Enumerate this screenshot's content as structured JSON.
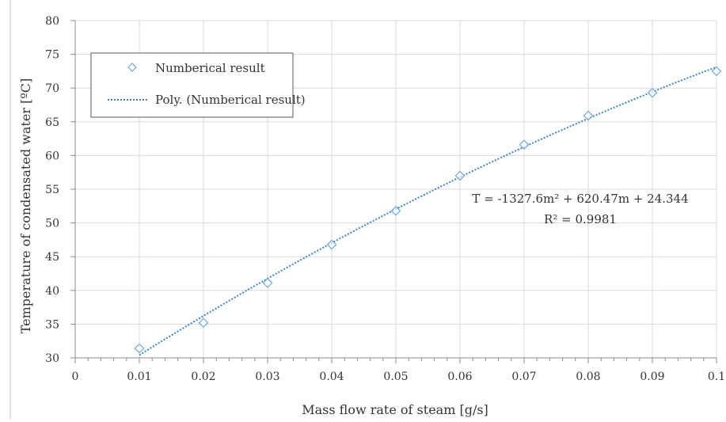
{
  "chart_data": {
    "type": "scatter",
    "title": "",
    "xlabel": "Mass flow rate of steam [g/s]",
    "ylabel": "Temperature of condensated water [ºC]",
    "xlim": [
      0,
      0.1
    ],
    "ylim": [
      30,
      80
    ],
    "x_ticks": [
      "0",
      "0.01",
      "0.02",
      "0.03",
      "0.04",
      "0.05",
      "0.06",
      "0.07",
      "0.08",
      "0.09",
      "0.1"
    ],
    "y_ticks": [
      "30",
      "35",
      "40",
      "45",
      "50",
      "55",
      "60",
      "65",
      "70",
      "75",
      "80"
    ],
    "grid": true,
    "legend_position": "top-left",
    "series": [
      {
        "name": "Numberical result",
        "marker": "diamond",
        "color": "#6fa8dc",
        "x": [
          0.01,
          0.02,
          0.03,
          0.04,
          0.05,
          0.06,
          0.07,
          0.08,
          0.09,
          0.1
        ],
        "y": [
          31.4,
          35.2,
          41.1,
          46.8,
          51.8,
          57.0,
          61.6,
          65.9,
          69.3,
          72.5
        ]
      }
    ],
    "trendline": {
      "name": "Poly. (Numberical result)",
      "style": "dotted",
      "color": "#3d85c6",
      "coefficients": [
        -1327.6,
        620.47,
        24.344
      ],
      "x_range": [
        0.01,
        0.1
      ]
    },
    "annotations": [
      "T = -1327.6m² + 620.47m + 24.344",
      "R² = 0.9981"
    ]
  }
}
